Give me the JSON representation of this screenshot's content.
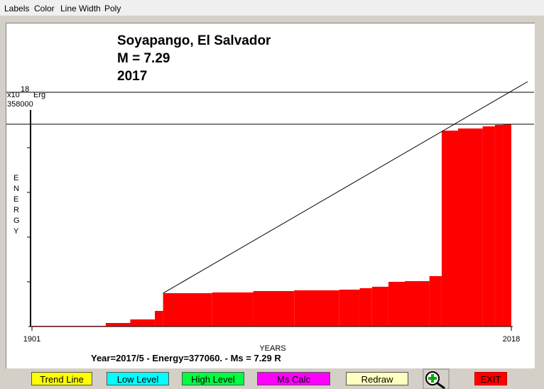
{
  "menu": [
    "Labels",
    "Color",
    "Line Width",
    "Poly"
  ],
  "chart_data": {
    "type": "step-area",
    "title_lines": [
      "Soyapango, El Salvador",
      "M = 7.29",
      "2017"
    ],
    "y_unit": {
      "base": "x10",
      "exponent": "18",
      "unit": "Erg"
    },
    "y_label": "ENERGY",
    "x_label": "YEARS",
    "x": [
      1901,
      1919,
      1925,
      1931,
      1933,
      1945,
      1955,
      1965,
      1976,
      1981,
      1984,
      1988,
      1992,
      1998,
      2001,
      2005,
      2011,
      2014,
      2016
    ],
    "values": [
      1100,
      5700,
      11400,
      25000,
      53400,
      54600,
      56800,
      58000,
      59100,
      61400,
      63700,
      71600,
      72700,
      80700,
      313700,
      317100,
      320500,
      322800,
      323900
    ],
    "color": "#ff0000",
    "xlim": [
      1901,
      2018
    ],
    "xticks": [
      1901,
      2018
    ],
    "ylim": [
      0,
      358000
    ],
    "yticks": [
      358000
    ],
    "minor_yticks": [
      71600,
      143200,
      214800,
      286400
    ],
    "trend_line": {
      "x": [
        1933,
        2022
      ],
      "y": [
        53400,
        392100
      ]
    },
    "levels": [
      375000,
      323900
    ]
  },
  "status": "Year=2017/5 - Energy=377060. - Ms = 7.29 R",
  "buttons": [
    {
      "label": "Trend Line",
      "color": "#ffff00"
    },
    {
      "label": "Low Level",
      "color": "#00ffff"
    },
    {
      "label": "High Level",
      "color": "#00ff40"
    },
    {
      "label": "Ms Calc",
      "color": "#ff00ff"
    },
    {
      "label": "Redraw",
      "color": "#ffffc0"
    },
    {
      "label": "EXIT",
      "color": "#ff0000"
    }
  ]
}
